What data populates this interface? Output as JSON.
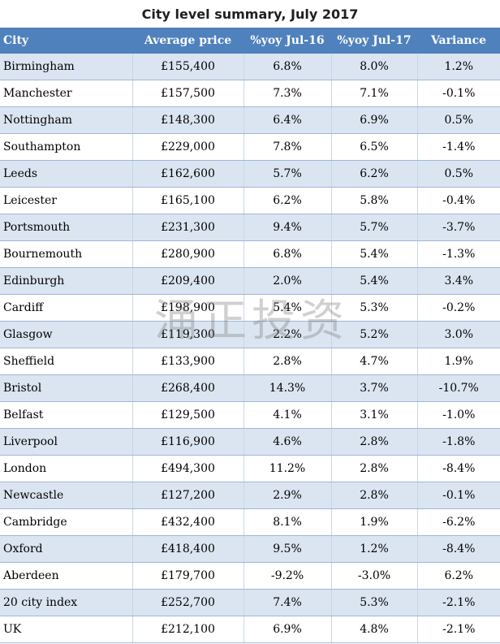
{
  "title": "City level summary, July 2017",
  "headers": [
    "City",
    "Average price",
    "%yoy Jul-16",
    "%yoy Jul-17",
    "Variance"
  ],
  "rows": [
    [
      "Birmingham",
      "£155,400",
      "6.8%",
      "8.0%",
      "1.2%"
    ],
    [
      "Manchester",
      "£157,500",
      "7.3%",
      "7.1%",
      "-0.1%"
    ],
    [
      "Nottingham",
      "£148,300",
      "6.4%",
      "6.9%",
      "0.5%"
    ],
    [
      "Southampton",
      "£229,000",
      "7.8%",
      "6.5%",
      "-1.4%"
    ],
    [
      "Leeds",
      "£162,600",
      "5.7%",
      "6.2%",
      "0.5%"
    ],
    [
      "Leicester",
      "£165,100",
      "6.2%",
      "5.8%",
      "-0.4%"
    ],
    [
      "Portsmouth",
      "£231,300",
      "9.4%",
      "5.7%",
      "-3.7%"
    ],
    [
      "Bournemouth",
      "£280,900",
      "6.8%",
      "5.4%",
      "-1.3%"
    ],
    [
      "Edinburgh",
      "£209,400",
      "2.0%",
      "5.4%",
      "3.4%"
    ],
    [
      "Cardiff",
      "£198,900",
      "5.4%",
      "5.3%",
      "-0.2%"
    ],
    [
      "Glasgow",
      "£119,300",
      "2.2%",
      "5.2%",
      "3.0%"
    ],
    [
      "Sheffield",
      "£133,900",
      "2.8%",
      "4.7%",
      "1.9%"
    ],
    [
      "Bristol",
      "£268,400",
      "14.3%",
      "3.7%",
      "-10.7%"
    ],
    [
      "Belfast",
      "£129,500",
      "4.1%",
      "3.1%",
      "-1.0%"
    ],
    [
      "Liverpool",
      "£116,900",
      "4.6%",
      "2.8%",
      "-1.8%"
    ],
    [
      "London",
      "£494,300",
      "11.2%",
      "2.8%",
      "-8.4%"
    ],
    [
      "Newcastle",
      "£127,200",
      "2.9%",
      "2.8%",
      "-0.1%"
    ],
    [
      "Cambridge",
      "£432,400",
      "8.1%",
      "1.9%",
      "-6.2%"
    ],
    [
      "Oxford",
      "£418,400",
      "9.5%",
      "1.2%",
      "-8.4%"
    ],
    [
      "Aberdeen",
      "£179,700",
      "-9.2%",
      "-3.0%",
      "6.2%"
    ],
    [
      "20 city index",
      "£252,700",
      "7.4%",
      "5.3%",
      "-2.1%"
    ],
    [
      "UK",
      "£212,100",
      "6.9%",
      "4.8%",
      "-2.1%"
    ]
  ],
  "watermark": "涌正投资",
  "colors": {
    "header_bg": "#4f81bd",
    "band_bg": "#dbe5f1"
  }
}
